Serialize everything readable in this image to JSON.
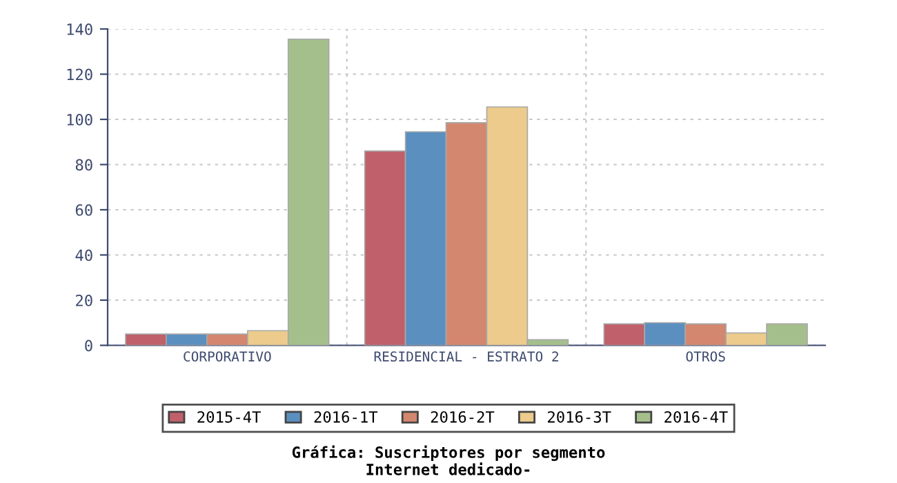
{
  "chart_data": {
    "type": "bar",
    "title": "Gráfica: Suscriptores por segmento\nInternet dedicado-",
    "categories": [
      "CORPORATIVO",
      "RESIDENCIAL - ESTRATO 2",
      "OTROS"
    ],
    "series": [
      {
        "name": "2015-4T",
        "color": "#c0606a",
        "values": [
          5,
          86,
          9.5
        ]
      },
      {
        "name": "2016-1T",
        "color": "#5b8fc0",
        "values": [
          5,
          94.5,
          10
        ]
      },
      {
        "name": "2016-2T",
        "color": "#d3876e",
        "values": [
          5,
          98.5,
          9.5
        ]
      },
      {
        "name": "2016-3T",
        "color": "#eccb8c",
        "values": [
          6.5,
          105.5,
          5.5
        ]
      },
      {
        "name": "2016-4T",
        "color": "#a5bf8c",
        "values": [
          135.5,
          2.5,
          9.5
        ]
      }
    ],
    "ylim": [
      0,
      140
    ],
    "yticks": [
      0,
      20,
      40,
      60,
      80,
      100,
      120,
      140
    ],
    "grid": true,
    "legend": "bottom"
  }
}
